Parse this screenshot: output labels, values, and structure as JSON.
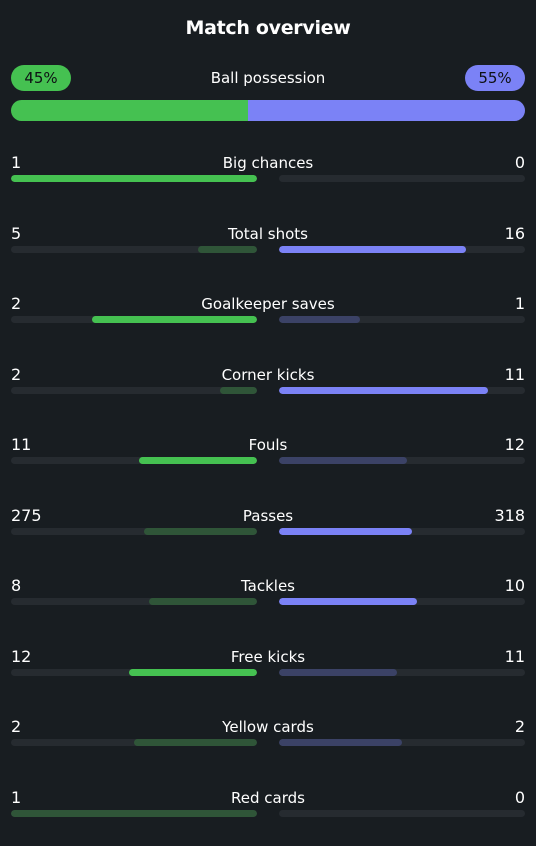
{
  "title": "Match overview",
  "colors": {
    "home_win": "#45c151",
    "home_lose": "#2f5538",
    "away_win": "#7b82f6",
    "away_lose": "#3b4266",
    "track": "#262b30",
    "background": "#181d21"
  },
  "possession": {
    "label": "Ball possession",
    "home": "45%",
    "away": "55%",
    "home_fraction": 0.45
  },
  "stats": [
    {
      "label": "Big chances",
      "home": "1",
      "away": "0",
      "home_fill": 1.0,
      "away_fill": 0.0,
      "leader": "home"
    },
    {
      "label": "Total shots",
      "home": "5",
      "away": "16",
      "home_fill": 0.24,
      "away_fill": 0.76,
      "leader": "away"
    },
    {
      "label": "Goalkeeper saves",
      "home": "2",
      "away": "1",
      "home_fill": 0.67,
      "away_fill": 0.33,
      "leader": "home"
    },
    {
      "label": "Corner kicks",
      "home": "2",
      "away": "11",
      "home_fill": 0.15,
      "away_fill": 0.85,
      "leader": "away"
    },
    {
      "label": "Fouls",
      "home": "11",
      "away": "12",
      "home_fill": 0.48,
      "away_fill": 0.52,
      "leader": "home"
    },
    {
      "label": "Passes",
      "home": "275",
      "away": "318",
      "home_fill": 0.46,
      "away_fill": 0.54,
      "leader": "away"
    },
    {
      "label": "Tackles",
      "home": "8",
      "away": "10",
      "home_fill": 0.44,
      "away_fill": 0.56,
      "leader": "away"
    },
    {
      "label": "Free kicks",
      "home": "12",
      "away": "11",
      "home_fill": 0.52,
      "away_fill": 0.48,
      "leader": "home"
    },
    {
      "label": "Yellow cards",
      "home": "2",
      "away": "2",
      "home_fill": 0.5,
      "away_fill": 0.5,
      "leader": "none"
    },
    {
      "label": "Red cards",
      "home": "1",
      "away": "0",
      "home_fill": 1.0,
      "away_fill": 0.0,
      "leader": "none"
    }
  ]
}
